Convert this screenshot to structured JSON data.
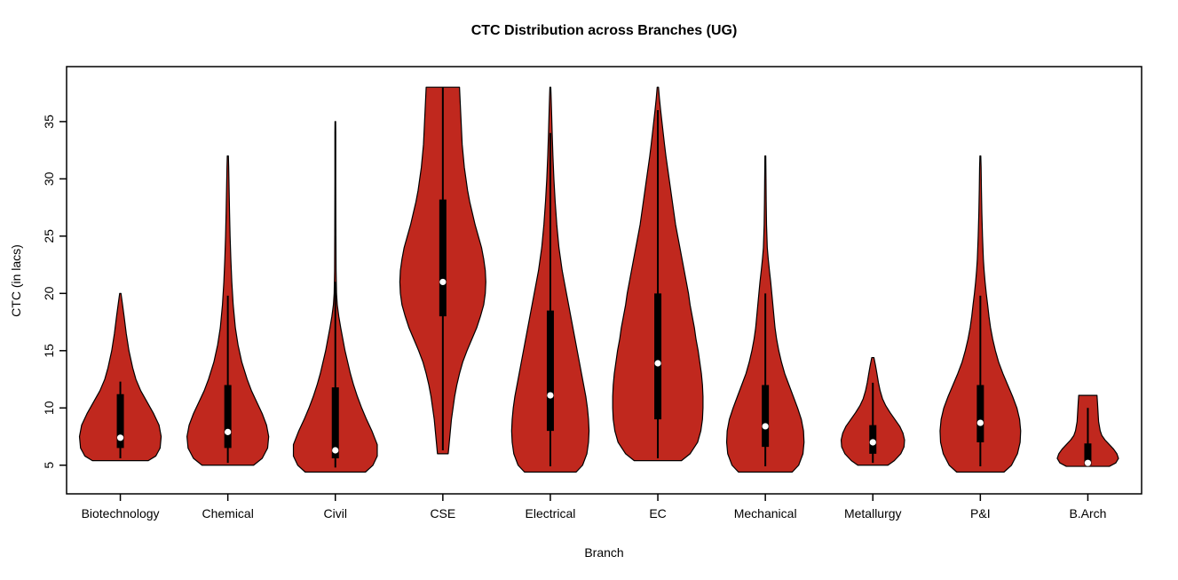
{
  "chart_data": {
    "type": "violin",
    "title": "CTC Distribution across Branches (UG)",
    "xlabel": "Branch",
    "ylabel": "CTC (in lacs)",
    "ylim": [
      2.5,
      39.8
    ],
    "yticks": [
      5,
      10,
      15,
      20,
      25,
      30,
      35
    ],
    "grid": false,
    "legend": "none",
    "violin_fill": "#C0281E",
    "violin_stroke": "#000000",
    "box_color": "#000000",
    "median_dot_color": "#ffffff",
    "categories": [
      "Biotechnology",
      "Chemical",
      "Civil",
      "CSE",
      "Electrical",
      "EC",
      "Mechanical",
      "Metallurgy",
      "P&I",
      "B.Arch"
    ],
    "series": [
      {
        "name": "Biotechnology",
        "min": 5.4,
        "max": 20,
        "q1": 6.5,
        "median": 7.4,
        "q3": 11.2,
        "whisker_low": 5.6,
        "whisker_high": 12.3,
        "profile": [
          [
            5.4,
            0.26
          ],
          [
            5.8,
            0.33
          ],
          [
            6.5,
            0.37
          ],
          [
            7.5,
            0.38
          ],
          [
            8.5,
            0.36
          ],
          [
            9.5,
            0.31
          ],
          [
            10.5,
            0.25
          ],
          [
            11.5,
            0.19
          ],
          [
            12.5,
            0.145
          ],
          [
            13.5,
            0.115
          ],
          [
            15,
            0.08
          ],
          [
            16.5,
            0.055
          ],
          [
            18,
            0.035
          ],
          [
            19.2,
            0.018
          ],
          [
            20,
            0.006
          ]
        ]
      },
      {
        "name": "Chemical",
        "min": 5.0,
        "max": 32,
        "q1": 6.5,
        "median": 7.9,
        "q3": 12.0,
        "whisker_low": 5.2,
        "whisker_high": 19.8,
        "profile": [
          [
            5.0,
            0.24
          ],
          [
            5.6,
            0.32
          ],
          [
            6.5,
            0.37
          ],
          [
            7.5,
            0.38
          ],
          [
            8.5,
            0.36
          ],
          [
            9.5,
            0.32
          ],
          [
            10.5,
            0.27
          ],
          [
            11.5,
            0.22
          ],
          [
            12.5,
            0.18
          ],
          [
            14,
            0.13
          ],
          [
            15.5,
            0.095
          ],
          [
            17,
            0.07
          ],
          [
            19,
            0.05
          ],
          [
            21,
            0.037
          ],
          [
            23,
            0.028
          ],
          [
            25,
            0.021
          ],
          [
            27,
            0.016
          ],
          [
            29,
            0.012
          ],
          [
            31,
            0.008
          ],
          [
            32,
            0.005
          ]
        ]
      },
      {
        "name": "Civil",
        "min": 4.4,
        "max": 35,
        "q1": 5.6,
        "median": 6.3,
        "q3": 11.8,
        "whisker_low": 4.8,
        "whisker_high": 21.0,
        "profile": [
          [
            4.4,
            0.28
          ],
          [
            5.0,
            0.35
          ],
          [
            5.8,
            0.39
          ],
          [
            6.8,
            0.39
          ],
          [
            8,
            0.34
          ],
          [
            9,
            0.29
          ],
          [
            10,
            0.245
          ],
          [
            11,
            0.205
          ],
          [
            12,
            0.17
          ],
          [
            13,
            0.14
          ],
          [
            14,
            0.115
          ],
          [
            15,
            0.09
          ],
          [
            16,
            0.07
          ],
          [
            17,
            0.05
          ],
          [
            18,
            0.032
          ],
          [
            19,
            0.018
          ],
          [
            20,
            0.011
          ],
          [
            22,
            0.007
          ],
          [
            26,
            0.005
          ],
          [
            30,
            0.004
          ],
          [
            34,
            0.004
          ],
          [
            35,
            0.003
          ]
        ]
      },
      {
        "name": "CSE",
        "min": 6.0,
        "max": 38,
        "q1": 18.0,
        "median": 21.0,
        "q3": 28.2,
        "whisker_low": 6.3,
        "whisker_high": 38,
        "profile": [
          [
            6,
            0.05
          ],
          [
            7,
            0.06
          ],
          [
            8,
            0.07
          ],
          [
            9,
            0.08
          ],
          [
            10,
            0.095
          ],
          [
            11,
            0.11
          ],
          [
            12,
            0.13
          ],
          [
            13,
            0.155
          ],
          [
            14,
            0.185
          ],
          [
            15,
            0.225
          ],
          [
            16,
            0.27
          ],
          [
            17,
            0.315
          ],
          [
            18,
            0.35
          ],
          [
            19,
            0.38
          ],
          [
            20,
            0.395
          ],
          [
            21,
            0.4
          ],
          [
            22,
            0.395
          ],
          [
            23,
            0.38
          ],
          [
            24,
            0.36
          ],
          [
            25,
            0.33
          ],
          [
            26,
            0.3
          ],
          [
            27,
            0.275
          ],
          [
            28,
            0.25
          ],
          [
            29,
            0.23
          ],
          [
            30,
            0.215
          ],
          [
            31,
            0.2
          ],
          [
            32,
            0.19
          ],
          [
            33,
            0.18
          ],
          [
            34,
            0.175
          ],
          [
            35,
            0.17
          ],
          [
            36,
            0.165
          ],
          [
            37,
            0.16
          ],
          [
            38,
            0.155
          ]
        ]
      },
      {
        "name": "Electrical",
        "min": 4.4,
        "max": 38,
        "q1": 8.0,
        "median": 11.1,
        "q3": 18.5,
        "whisker_low": 4.9,
        "whisker_high": 34,
        "profile": [
          [
            4.4,
            0.24
          ],
          [
            5,
            0.3
          ],
          [
            6,
            0.34
          ],
          [
            7,
            0.355
          ],
          [
            8,
            0.36
          ],
          [
            9,
            0.355
          ],
          [
            10,
            0.345
          ],
          [
            11,
            0.33
          ],
          [
            12,
            0.31
          ],
          [
            13,
            0.29
          ],
          [
            14,
            0.27
          ],
          [
            15,
            0.25
          ],
          [
            16,
            0.23
          ],
          [
            17,
            0.21
          ],
          [
            18,
            0.19
          ],
          [
            19,
            0.17
          ],
          [
            20,
            0.15
          ],
          [
            21,
            0.13
          ],
          [
            22,
            0.11
          ],
          [
            23,
            0.095
          ],
          [
            24,
            0.08
          ],
          [
            25,
            0.07
          ],
          [
            26,
            0.06
          ],
          [
            28,
            0.045
          ],
          [
            30,
            0.033
          ],
          [
            32,
            0.024
          ],
          [
            34,
            0.017
          ],
          [
            36,
            0.011
          ],
          [
            37.5,
            0.006
          ],
          [
            38,
            0.004
          ]
        ]
      },
      {
        "name": "EC",
        "min": 5.4,
        "max": 38,
        "q1": 9.0,
        "median": 13.9,
        "q3": 20.0,
        "whisker_low": 5.6,
        "whisker_high": 36,
        "profile": [
          [
            5.4,
            0.22
          ],
          [
            6,
            0.3
          ],
          [
            7,
            0.37
          ],
          [
            8,
            0.4
          ],
          [
            9,
            0.415
          ],
          [
            10,
            0.42
          ],
          [
            11,
            0.42
          ],
          [
            12,
            0.415
          ],
          [
            13,
            0.405
          ],
          [
            14,
            0.39
          ],
          [
            15,
            0.375
          ],
          [
            16,
            0.355
          ],
          [
            17,
            0.34
          ],
          [
            18,
            0.32
          ],
          [
            19,
            0.3
          ],
          [
            20,
            0.285
          ],
          [
            21,
            0.265
          ],
          [
            22,
            0.245
          ],
          [
            23,
            0.225
          ],
          [
            24,
            0.205
          ],
          [
            25,
            0.185
          ],
          [
            26,
            0.165
          ],
          [
            27,
            0.15
          ],
          [
            28,
            0.135
          ],
          [
            29,
            0.12
          ],
          [
            30,
            0.105
          ],
          [
            31,
            0.09
          ],
          [
            32,
            0.075
          ],
          [
            33,
            0.062
          ],
          [
            34,
            0.05
          ],
          [
            35,
            0.038
          ],
          [
            36,
            0.026
          ],
          [
            37,
            0.015
          ],
          [
            38,
            0.006
          ]
        ]
      },
      {
        "name": "Mechanical",
        "min": 4.4,
        "max": 32,
        "q1": 6.6,
        "median": 8.4,
        "q3": 12.0,
        "whisker_low": 4.9,
        "whisker_high": 20,
        "profile": [
          [
            4.4,
            0.25
          ],
          [
            5,
            0.31
          ],
          [
            6,
            0.35
          ],
          [
            7,
            0.36
          ],
          [
            8,
            0.355
          ],
          [
            9,
            0.335
          ],
          [
            10,
            0.3
          ],
          [
            11,
            0.26
          ],
          [
            12,
            0.22
          ],
          [
            13,
            0.18
          ],
          [
            14,
            0.15
          ],
          [
            15,
            0.125
          ],
          [
            16,
            0.105
          ],
          [
            17,
            0.09
          ],
          [
            18,
            0.08
          ],
          [
            19,
            0.07
          ],
          [
            20,
            0.06
          ],
          [
            21,
            0.05
          ],
          [
            22,
            0.038
          ],
          [
            23,
            0.027
          ],
          [
            24,
            0.018
          ],
          [
            26,
            0.011
          ],
          [
            28,
            0.008
          ],
          [
            30,
            0.006
          ],
          [
            32,
            0.004
          ]
        ]
      },
      {
        "name": "Metallurgy",
        "min": 5.0,
        "max": 14.4,
        "q1": 6.0,
        "median": 7.0,
        "q3": 8.5,
        "whisker_low": 5.2,
        "whisker_high": 12.2,
        "profile": [
          [
            5,
            0.14
          ],
          [
            5.4,
            0.2
          ],
          [
            6,
            0.26
          ],
          [
            6.6,
            0.29
          ],
          [
            7.2,
            0.295
          ],
          [
            7.8,
            0.28
          ],
          [
            8.4,
            0.25
          ],
          [
            9,
            0.205
          ],
          [
            9.6,
            0.16
          ],
          [
            10.2,
            0.12
          ],
          [
            10.8,
            0.09
          ],
          [
            11.5,
            0.068
          ],
          [
            12.2,
            0.052
          ],
          [
            13,
            0.038
          ],
          [
            13.7,
            0.025
          ],
          [
            14.4,
            0.01
          ]
        ]
      },
      {
        "name": "P&I",
        "min": 4.4,
        "max": 32,
        "q1": 7.0,
        "median": 8.7,
        "q3": 12.0,
        "whisker_low": 4.9,
        "whisker_high": 19.8,
        "profile": [
          [
            4.4,
            0.22
          ],
          [
            5,
            0.29
          ],
          [
            6,
            0.345
          ],
          [
            7,
            0.37
          ],
          [
            8,
            0.375
          ],
          [
            9,
            0.365
          ],
          [
            10,
            0.34
          ],
          [
            11,
            0.3
          ],
          [
            12,
            0.255
          ],
          [
            13,
            0.21
          ],
          [
            14,
            0.17
          ],
          [
            15,
            0.14
          ],
          [
            16,
            0.115
          ],
          [
            17,
            0.095
          ],
          [
            18,
            0.08
          ],
          [
            19,
            0.068
          ],
          [
            20,
            0.055
          ],
          [
            21,
            0.044
          ],
          [
            22,
            0.035
          ],
          [
            23,
            0.028
          ],
          [
            25,
            0.02
          ],
          [
            27,
            0.014
          ],
          [
            29,
            0.01
          ],
          [
            31,
            0.007
          ],
          [
            32,
            0.004
          ]
        ]
      },
      {
        "name": "B.Arch",
        "min": 4.9,
        "max": 11.1,
        "q1": 5.0,
        "median": 5.2,
        "q3": 6.9,
        "whisker_low": 4.9,
        "whisker_high": 10.0,
        "profile": [
          [
            4.9,
            0.2
          ],
          [
            5.2,
            0.26
          ],
          [
            5.6,
            0.285
          ],
          [
            6,
            0.27
          ],
          [
            6.4,
            0.24
          ],
          [
            6.8,
            0.2
          ],
          [
            7.2,
            0.16
          ],
          [
            7.6,
            0.13
          ],
          [
            8,
            0.115
          ],
          [
            8.8,
            0.1
          ],
          [
            9.6,
            0.095
          ],
          [
            10.4,
            0.09
          ],
          [
            11.1,
            0.085
          ]
        ]
      }
    ]
  }
}
